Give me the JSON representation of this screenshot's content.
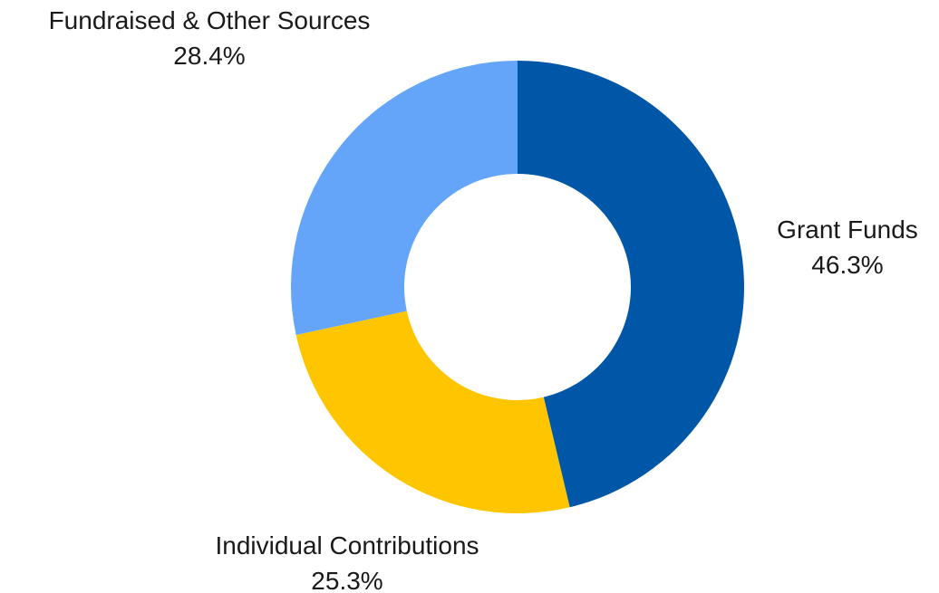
{
  "chart_data": {
    "type": "pie",
    "donut": true,
    "title": "",
    "slices": [
      {
        "name": "Grant Funds",
        "value": 46.3,
        "label": "46.3%",
        "color": "#0057A8"
      },
      {
        "name": "Individual Contributions",
        "value": 25.3,
        "label": "25.3%",
        "color": "#FFC600"
      },
      {
        "name": "Fundraised & Other Sources",
        "value": 28.4,
        "label": "28.4%",
        "color": "#64A5F9"
      }
    ],
    "start_angle": "12 o'clock",
    "direction": "clockwise",
    "legend": "none"
  }
}
